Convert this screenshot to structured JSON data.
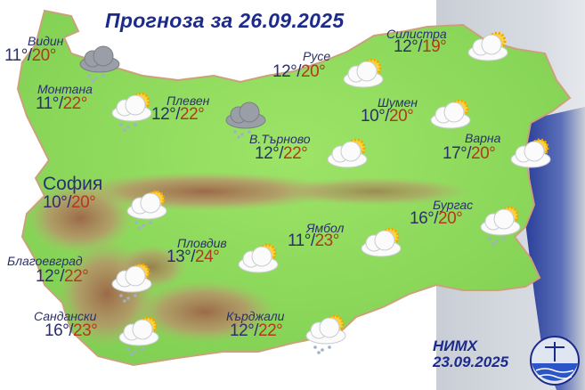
{
  "title": "Прогноза за 26.09.2025",
  "colors": {
    "min_temp": "#2b2f6e",
    "max_temp": "#b2391c",
    "title": "#1c2a8c",
    "land": "#8fdc5a",
    "mountains": "#a87a55",
    "sea": "#2c3f9a"
  },
  "cities": [
    {
      "name": "Видин",
      "min": "11°",
      "max": "20°",
      "icon": "rain-cloud-icon"
    },
    {
      "name": "Монтана",
      "min": "11°",
      "max": "22°",
      "icon": "partly-cloudy-rain-icon"
    },
    {
      "name": "Плевен",
      "min": "12°",
      "max": "22°",
      "icon": "rain-cloud-icon"
    },
    {
      "name": "Русе",
      "min": "12°",
      "max": "20°",
      "icon": "partly-cloudy-icon"
    },
    {
      "name": "Силистра",
      "min": "12°",
      "max": "19°",
      "icon": "partly-cloudy-icon"
    },
    {
      "name": "Шумен",
      "min": "10°",
      "max": "20°",
      "icon": "partly-cloudy-icon"
    },
    {
      "name": "В.Търново",
      "min": "12°",
      "max": "22°",
      "icon": "partly-cloudy-icon"
    },
    {
      "name": "Варна",
      "min": "17°",
      "max": "20°",
      "icon": "partly-cloudy-icon"
    },
    {
      "name": "София",
      "min": "10°",
      "max": "20°",
      "icon": "partly-cloudy-rain-icon"
    },
    {
      "name": "Бургас",
      "min": "16°",
      "max": "20°",
      "icon": "partly-cloudy-rain-icon"
    },
    {
      "name": "Ямбол",
      "min": "11°",
      "max": "23°",
      "icon": "partly-cloudy-icon"
    },
    {
      "name": "Пловдив",
      "min": "13°",
      "max": "24°",
      "icon": "partly-cloudy-icon"
    },
    {
      "name": "Благоевград",
      "min": "12°",
      "max": "22°",
      "icon": "partly-cloudy-rain-icon"
    },
    {
      "name": "Сандански",
      "min": "16°",
      "max": "23°",
      "icon": "partly-cloudy-rain-icon"
    },
    {
      "name": "Кърджали",
      "min": "12°",
      "max": "22°",
      "icon": "partly-cloudy-rain-icon"
    }
  ],
  "footer": {
    "org": "НИМХ",
    "issued": "23.09.2025"
  }
}
